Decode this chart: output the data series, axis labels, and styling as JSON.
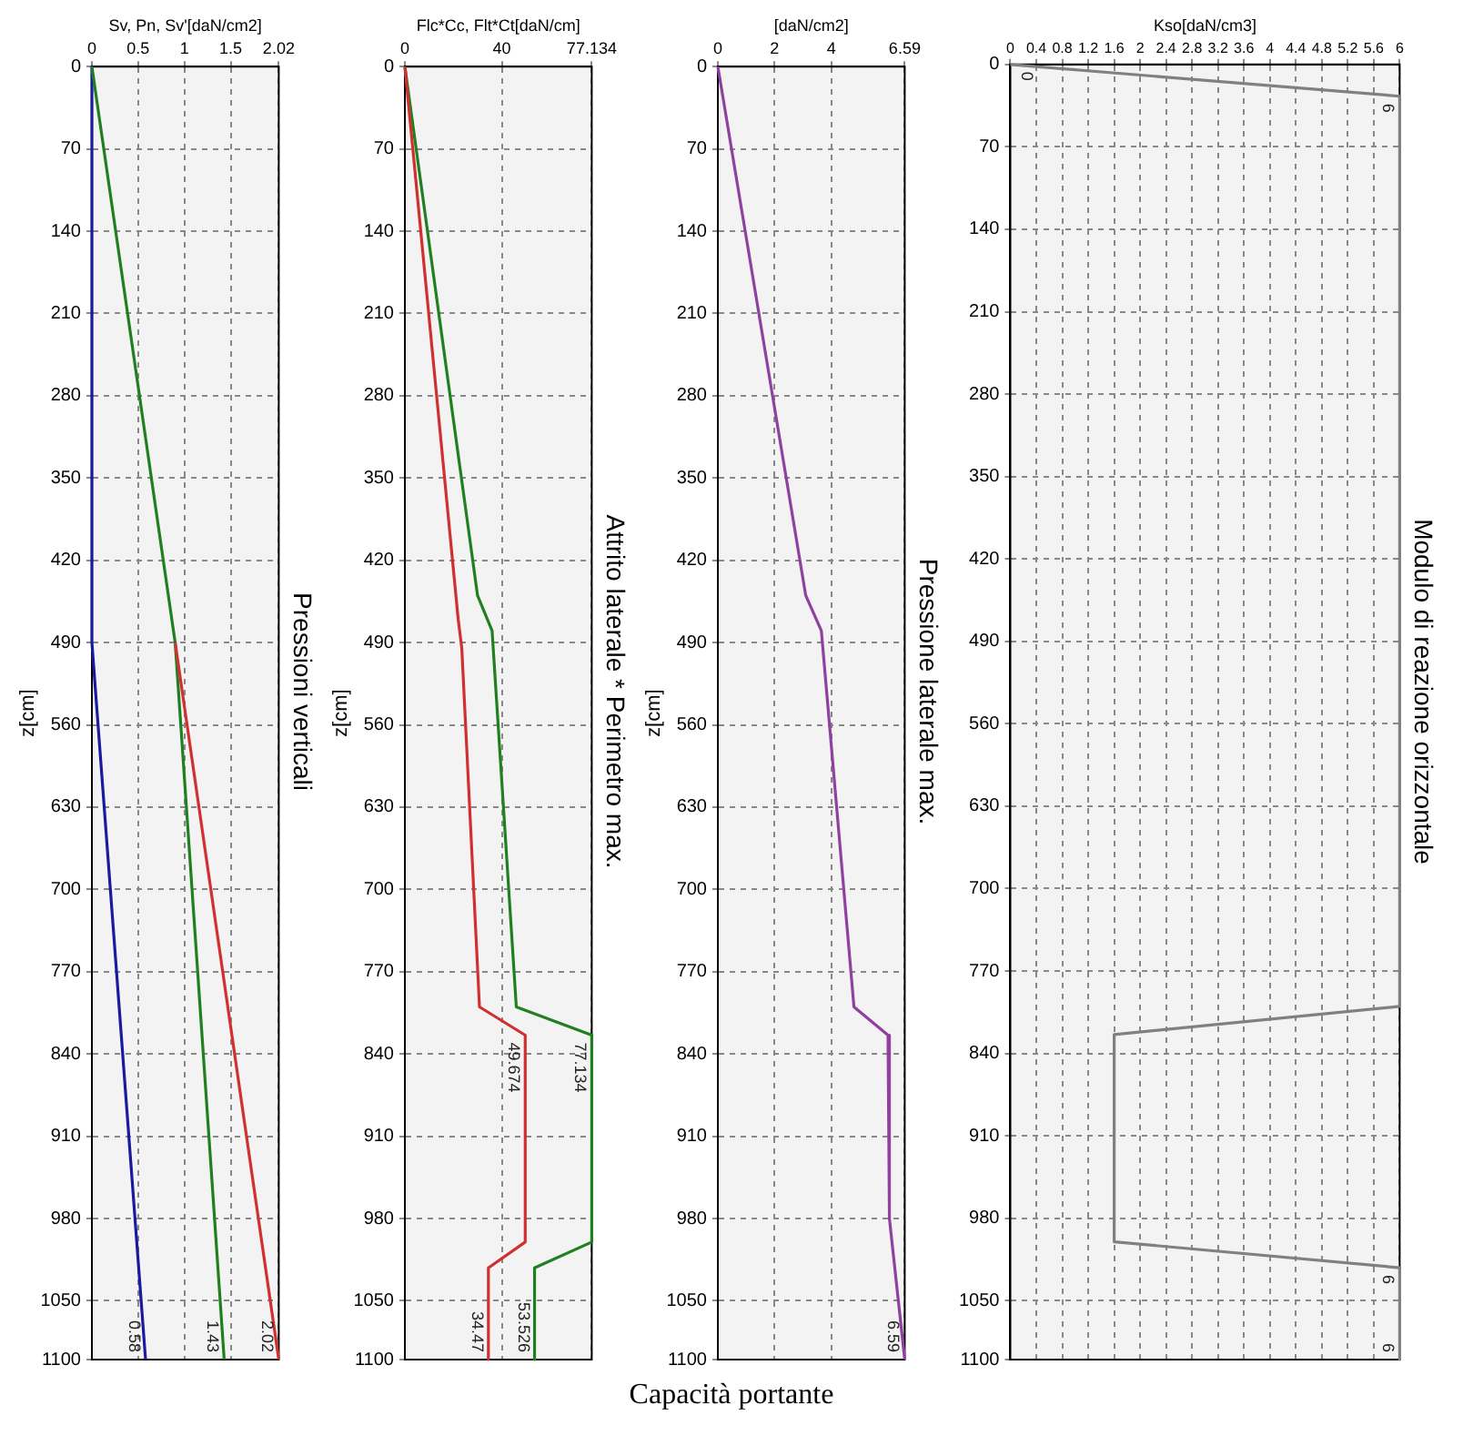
{
  "chart_data": [
    {
      "type": "line",
      "orientation": "horizontal",
      "title": "Pressioni verticali",
      "xlabel": "Sv, Pn, Sv'[daN/cm2]",
      "ylabel": "z[cm]",
      "xlim": [
        0,
        2.02
      ],
      "xticks": [
        0,
        0.5,
        1,
        1.5,
        2.02
      ],
      "ylim": [
        1100,
        0
      ],
      "yticks": [
        0,
        70,
        140,
        210,
        280,
        350,
        420,
        490,
        560,
        630,
        700,
        770,
        840,
        910,
        980,
        1050,
        1100
      ],
      "grid": true,
      "legend": false,
      "annotations": [
        "Capacità portante"
      ],
      "series": [
        {
          "color": "#d03030",
          "x": [
            490,
            1100
          ],
          "values": [
            0.9,
            2.02
          ],
          "value_labels": [
            null,
            "2.02"
          ]
        },
        {
          "color": "#208020",
          "x": [
            0,
            490,
            1100
          ],
          "values": [
            0,
            0.9,
            1.43
          ],
          "value_labels": [
            null,
            null,
            "1.43"
          ]
        },
        {
          "color": "#1a1aa0",
          "x": [
            0,
            490,
            1100
          ],
          "values": [
            0,
            0,
            0.58
          ],
          "value_labels": [
            null,
            null,
            "0.58"
          ]
        }
      ]
    },
    {
      "type": "line",
      "orientation": "horizontal",
      "title": "Attrito laterale * Perimetro max.",
      "xlabel": "Flc*Cc, Flt*Ct[daN/cm]",
      "ylabel": "z[cm]",
      "xlim": [
        0,
        77.134
      ],
      "xticks": [
        0,
        40,
        77.134
      ],
      "ylim": [
        1100,
        0
      ],
      "yticks": [
        0,
        70,
        140,
        210,
        280,
        350,
        420,
        490,
        560,
        630,
        700,
        770,
        840,
        910,
        980,
        1050,
        1100
      ],
      "grid": true,
      "legend": false,
      "series": [
        {
          "color": "#d03030",
          "x": [
            0,
            470,
            495,
            800,
            824,
            1000,
            1022,
            1100
          ],
          "values": [
            0,
            22,
            23.5,
            30.8,
            49.674,
            49.674,
            34.47,
            34.47
          ],
          "value_labels": [
            null,
            null,
            null,
            null,
            "49.674",
            null,
            null,
            "34.47"
          ]
        },
        {
          "color": "#208020",
          "x": [
            0,
            450,
            480,
            800,
            824,
            1000,
            1022,
            1100
          ],
          "values": [
            0,
            30,
            36,
            46,
            77.134,
            77.134,
            53.526,
            53.526
          ],
          "value_labels": [
            null,
            null,
            null,
            null,
            "77.134",
            null,
            null,
            "53.526"
          ]
        }
      ]
    },
    {
      "type": "line",
      "orientation": "horizontal",
      "title": "Pressione laterale max.",
      "xlabel": "[daN/cm2]",
      "ylabel": "z[cm]",
      "xlim": [
        0,
        6.59
      ],
      "xticks": [
        0,
        2,
        4,
        6.59
      ],
      "ylim": [
        1100,
        0
      ],
      "yticks": [
        0,
        70,
        140,
        210,
        280,
        350,
        420,
        490,
        560,
        630,
        700,
        770,
        840,
        910,
        980,
        1050,
        1100
      ],
      "grid": true,
      "legend": false,
      "series": [
        {
          "color": "#9040a0",
          "x": [
            0,
            450,
            480,
            800,
            824,
            980,
            1100
          ],
          "values": [
            0,
            3.1,
            3.65,
            4.8,
            6,
            6.05,
            6.59
          ],
          "value_labels": [
            null,
            null,
            null,
            null,
            null,
            null,
            "6.59"
          ]
        }
      ]
    },
    {
      "type": "line",
      "orientation": "horizontal",
      "title": "Modulo di reazione orizzontale",
      "xlabel": "Kso[daN/cm3]",
      "xlim": [
        0,
        6
      ],
      "xticks": [
        0,
        0.4,
        0.8,
        1.2,
        1.6,
        2,
        2.4,
        2.8,
        3.2,
        3.6,
        4,
        4.4,
        4.8,
        5.2,
        5.6,
        6
      ],
      "ylim": [
        1100,
        0
      ],
      "yticks": [
        0,
        70,
        140,
        210,
        280,
        350,
        420,
        490,
        560,
        630,
        700,
        770,
        840,
        910,
        980,
        1050,
        1100
      ],
      "grid": true,
      "legend": false,
      "series": [
        {
          "color": "#808080",
          "x": [
            0,
            27,
            800,
            824,
            1000,
            1022,
            1100
          ],
          "values": [
            0,
            6,
            6,
            1.6,
            1.6,
            6,
            6
          ],
          "value_labels": [
            "0",
            "6",
            null,
            null,
            null,
            "6",
            "6"
          ]
        }
      ]
    }
  ]
}
